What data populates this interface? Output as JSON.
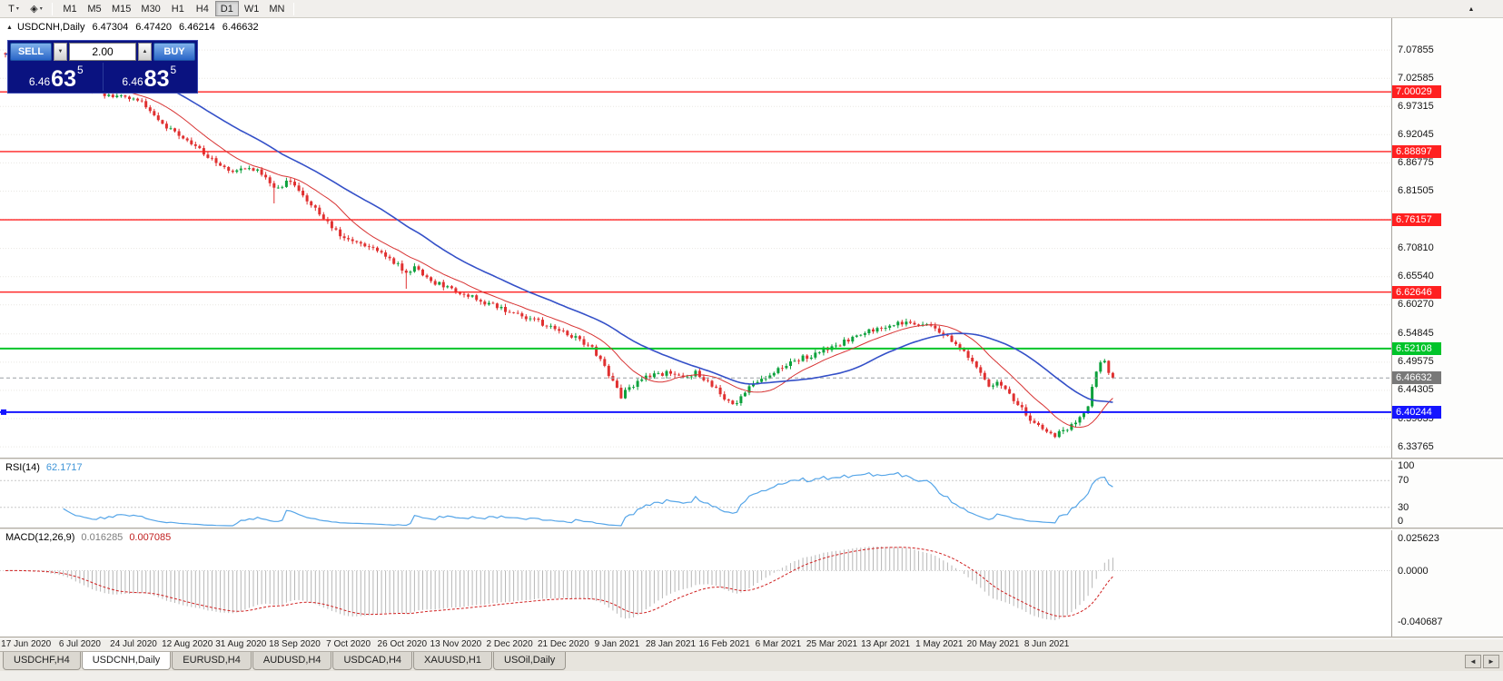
{
  "toolbar": {
    "text_tool_icon": "T",
    "draw_tool_icon": "◈",
    "caret_icon": "▾",
    "overflow_icon": "▲",
    "timeframes": [
      "M1",
      "M5",
      "M15",
      "M30",
      "H1",
      "H4",
      "D1",
      "W1",
      "MN"
    ],
    "active_timeframe": "D1"
  },
  "chart_header": {
    "marker_icon": "▲",
    "symbol_period": "USDCNH,Daily",
    "open": "6.47304",
    "high": "6.47420",
    "low": "6.46214",
    "close": "6.46632"
  },
  "one_click": {
    "sell_label": "SELL",
    "buy_label": "BUY",
    "lot_value": "2.00",
    "spin_down_icon": "▼",
    "spin_up_icon": "▲",
    "sell_price": {
      "base": "6.46",
      "big": "63",
      "sup": "5"
    },
    "buy_price": {
      "base": "6.46",
      "big": "83",
      "sup": "5"
    }
  },
  "rsi": {
    "name": "RSI(14)",
    "value": "62.1717",
    "line_color": "#55a5e8",
    "level_lines": [
      70,
      30
    ],
    "axis_labels": [
      {
        "label": "100",
        "value": 100
      },
      {
        "label": "70",
        "value": 70
      },
      {
        "label": "30",
        "value": 30
      },
      {
        "label": "0",
        "value": 0
      }
    ]
  },
  "macd": {
    "name": "MACD(12,26,9)",
    "main_value": "0.016285",
    "signal_value": "0.007085",
    "params": [
      12,
      26,
      9
    ],
    "histogram_color": "#b6b6b6",
    "signal_color": "#d02020",
    "scale_max": 0.0323,
    "scale_min": -0.0527,
    "axis_labels": [
      {
        "label": "0.025623",
        "value": 0.025623
      },
      {
        "label": "0.0000",
        "value": 0
      },
      {
        "label": "-0.040687",
        "value": -0.040687
      }
    ]
  },
  "tabs": {
    "left_icon": "◄",
    "right_icon": "►",
    "items": [
      {
        "label": "USDCHF,H4",
        "active": false
      },
      {
        "label": "USDCNH,Daily",
        "active": true
      },
      {
        "label": "EURUSD,H4",
        "active": false
      },
      {
        "label": "AUDUSD,H4",
        "active": false
      },
      {
        "label": "USDCAD,H4",
        "active": false
      },
      {
        "label": "XAUUSD,H1",
        "active": false
      },
      {
        "label": "USOil,Daily",
        "active": false
      }
    ]
  },
  "chart_data": {
    "type": "candlestick",
    "symbol": "USDCNH",
    "period": "Daily",
    "ohlc_current": {
      "open": 6.47304,
      "high": 6.4742,
      "low": 6.46214,
      "close": 6.46632
    },
    "price_axis": {
      "view_max": 7.138,
      "view_min": 6.3175,
      "labels": [
        "7.07855",
        "7.02585",
        "6.97315",
        "6.92045",
        "6.86775",
        "6.81505",
        "6.76235",
        "6.70810",
        "6.65540",
        "6.60270",
        "6.54845",
        "6.49575",
        "6.44305",
        "6.39035",
        "6.33765"
      ]
    },
    "levels": [
      {
        "label": "7.00029",
        "price": 7.00029,
        "color": "#ff2020",
        "width": 1.4
      },
      {
        "label": "6.88897",
        "price": 6.88897,
        "color": "#ff2020",
        "width": 1.4
      },
      {
        "label": "6.76157",
        "price": 6.76157,
        "color": "#ff2020",
        "width": 1.4
      },
      {
        "label": "6.62646",
        "price": 6.62646,
        "color": "#ff2020",
        "width": 1.4
      },
      {
        "label": "6.52108",
        "price": 6.52108,
        "color": "#00c42a",
        "width": 2
      },
      {
        "label": "6.40244",
        "price": 6.40244,
        "color": "#1414ff",
        "width": 2
      }
    ],
    "current_price": {
      "label": "6.46632",
      "value": 6.46632
    },
    "x_labels": [
      "17 Jun 2020",
      "6 Jul 2020",
      "24 Jul 2020",
      "12 Aug 2020",
      "31 Aug 2020",
      "18 Sep 2020",
      "7 Oct 2020",
      "26 Oct 2020",
      "13 Nov 2020",
      "2 Dec 2020",
      "21 Dec 2020",
      "9 Jan 2021",
      "28 Jan 2021",
      "16 Feb 2021",
      "6 Mar 2021",
      "25 Mar 2021",
      "13 Apr 2021",
      "1 May 2021",
      "20 May 2021",
      "8 Jun 2021"
    ],
    "candle_count": 269,
    "up_color": "#0ca13c",
    "down_color": "#e03030",
    "rsi_period": 14,
    "spike_low_indices": [
      65,
      97
    ],
    "moving_averages": [
      {
        "period": 13,
        "color": "#d83434",
        "width": 1
      },
      {
        "period": 34,
        "color": "#3450c8",
        "width": 1.6
      }
    ],
    "close_anchors": [
      [
        0,
        7.072
      ],
      [
        6,
        7.068
      ],
      [
        12,
        7.058
      ],
      [
        16,
        7.034
      ],
      [
        20,
        7.008
      ],
      [
        24,
        6.997
      ],
      [
        28,
        6.99
      ],
      [
        33,
        6.982
      ],
      [
        36,
        6.955
      ],
      [
        40,
        6.93
      ],
      [
        44,
        6.914
      ],
      [
        48,
        6.886
      ],
      [
        52,
        6.863
      ],
      [
        56,
        6.85
      ],
      [
        59,
        6.862
      ],
      [
        63,
        6.842
      ],
      [
        66,
        6.818
      ],
      [
        69,
        6.836
      ],
      [
        73,
        6.8
      ],
      [
        77,
        6.763
      ],
      [
        81,
        6.734
      ],
      [
        86,
        6.72
      ],
      [
        90,
        6.7
      ],
      [
        94,
        6.684
      ],
      [
        97,
        6.658
      ],
      [
        99,
        6.67
      ],
      [
        102,
        6.652
      ],
      [
        106,
        6.637
      ],
      [
        110,
        6.625
      ],
      [
        114,
        6.613
      ],
      [
        118,
        6.601
      ],
      [
        122,
        6.589
      ],
      [
        126,
        6.578
      ],
      [
        130,
        6.568
      ],
      [
        134,
        6.553
      ],
      [
        138,
        6.542
      ],
      [
        142,
        6.52
      ],
      [
        145,
        6.49
      ],
      [
        147,
        6.457
      ],
      [
        149,
        6.432
      ],
      [
        151,
        6.448
      ],
      [
        154,
        6.466
      ],
      [
        158,
        6.472
      ],
      [
        161,
        6.477
      ],
      [
        164,
        6.467
      ],
      [
        167,
        6.477
      ],
      [
        170,
        6.458
      ],
      [
        172,
        6.446
      ],
      [
        174,
        6.427
      ],
      [
        176,
        6.413
      ],
      [
        178,
        6.431
      ],
      [
        180,
        6.451
      ],
      [
        183,
        6.462
      ],
      [
        186,
        6.477
      ],
      [
        189,
        6.489
      ],
      [
        192,
        6.501
      ],
      [
        195,
        6.508
      ],
      [
        198,
        6.519
      ],
      [
        202,
        6.531
      ],
      [
        206,
        6.545
      ],
      [
        210,
        6.556
      ],
      [
        214,
        6.563
      ],
      [
        218,
        6.57
      ],
      [
        222,
        6.565
      ],
      [
        225,
        6.558
      ],
      [
        228,
        6.545
      ],
      [
        231,
        6.52
      ],
      [
        234,
        6.497
      ],
      [
        236,
        6.475
      ],
      [
        238,
        6.45
      ],
      [
        240,
        6.458
      ],
      [
        242,
        6.442
      ],
      [
        244,
        6.425
      ],
      [
        246,
        6.408
      ],
      [
        248,
        6.39
      ],
      [
        250,
        6.374
      ],
      [
        252,
        6.363
      ],
      [
        254,
        6.357
      ],
      [
        256,
        6.368
      ],
      [
        258,
        6.378
      ],
      [
        260,
        6.39
      ],
      [
        261,
        6.398
      ],
      [
        262,
        6.418
      ],
      [
        263,
        6.448
      ],
      [
        264,
        6.478
      ],
      [
        265,
        6.496
      ],
      [
        266,
        6.502
      ],
      [
        267,
        6.48
      ],
      [
        268,
        6.46632
      ]
    ]
  }
}
